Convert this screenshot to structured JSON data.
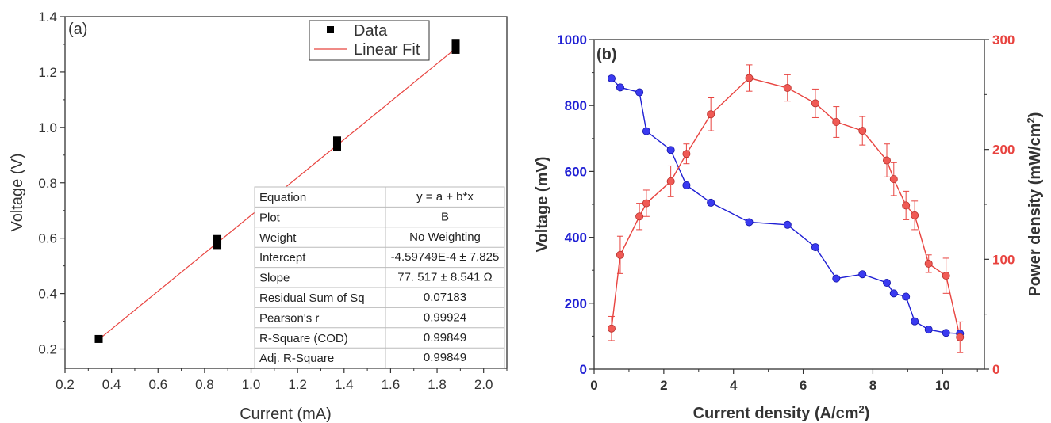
{
  "chart_data": [
    {
      "type": "scatter",
      "panel_label": "(a)",
      "xlabel": "Current (mA)",
      "ylabel": "Voltage (V)",
      "xlim": [
        0.2,
        2.1
      ],
      "ylim": [
        0.13,
        1.4
      ],
      "xticks": [
        "0.2",
        "0.4",
        "0.6",
        "0.8",
        "1.0",
        "1.2",
        "1.4",
        "1.6",
        "1.8",
        "2.0"
      ],
      "yticks": [
        "0.2",
        "0.4",
        "0.6",
        "0.8",
        "1.0",
        "1.2",
        "1.4"
      ],
      "legend": {
        "placement": "top-right",
        "entries": [
          "Data",
          "Linear Fit"
        ]
      },
      "series": [
        {
          "name": "Data",
          "color": "#000000",
          "x": [
            0.345,
            0.855,
            0.855,
            0.855,
            1.37,
            1.37,
            1.37,
            1.37,
            1.88,
            1.88,
            1.88
          ],
          "y": [
            0.236,
            0.575,
            0.59,
            0.597,
            0.928,
            0.938,
            0.948,
            0.953,
            1.28,
            1.292,
            1.305
          ]
        },
        {
          "name": "Linear Fit",
          "color": "#e8433f",
          "x": [
            0.345,
            1.88
          ],
          "y": [
            0.234,
            1.285
          ]
        }
      ],
      "fit_table": [
        [
          "Equation",
          "y = a + b*x"
        ],
        [
          "Plot",
          "B"
        ],
        [
          "Weight",
          "No Weighting"
        ],
        [
          "Intercept",
          "-4.59749E-4 ± 7.825"
        ],
        [
          "Slope",
          "77. 517 ± 8.541 Ω"
        ],
        [
          "Residual Sum of Sq",
          "0.07183"
        ],
        [
          "Pearson's r",
          "0.99924"
        ],
        [
          "R-Square (COD)",
          "0.99849"
        ],
        [
          "Adj. R-Square",
          "0.99849"
        ]
      ]
    },
    {
      "type": "line",
      "panel_label": "(b)",
      "xlabel": "Current density (A/cm²)",
      "ylabel_left": "Voltage (mV)",
      "ylabel_right": "Power density (mW/cm²)",
      "xlim": [
        0,
        11.2
      ],
      "ylim_left": [
        0,
        1000
      ],
      "ylim_right": [
        0,
        300
      ],
      "xticks": [
        "0",
        "2",
        "4",
        "6",
        "8",
        "10"
      ],
      "yticks_left": [
        "0",
        "200",
        "400",
        "600",
        "800",
        "1000"
      ],
      "yticks_right": [
        "0",
        "100",
        "200",
        "300"
      ],
      "grid": false,
      "colors": {
        "left": "#1f1fd4",
        "right": "#e8433f"
      },
      "series": [
        {
          "axis": "left",
          "x": [
            0.5,
            0.75,
            1.3,
            1.5,
            2.2,
            2.65,
            3.35,
            4.45,
            5.55,
            6.35,
            6.95,
            7.7,
            8.4,
            8.6,
            8.95,
            9.2,
            9.6,
            10.1,
            10.5
          ],
          "y": [
            882,
            855,
            840,
            722,
            665,
            558,
            505,
            446,
            438,
            370,
            275,
            288,
            262,
            230,
            220,
            145,
            120,
            110,
            108
          ]
        },
        {
          "axis": "right",
          "x": [
            0.5,
            0.75,
            1.3,
            1.5,
            2.2,
            2.65,
            3.35,
            4.45,
            5.55,
            6.35,
            6.95,
            7.7,
            8.4,
            8.6,
            8.95,
            9.2,
            9.6,
            10.1,
            10.5
          ],
          "y": [
            37,
            104,
            139,
            151,
            171,
            196,
            232,
            265,
            256,
            242,
            225,
            217,
            190,
            173,
            149,
            140,
            96,
            85,
            29
          ],
          "err": [
            11,
            17,
            12,
            12,
            14,
            9,
            15,
            12,
            12,
            13,
            14,
            13,
            15,
            15,
            13,
            13,
            8,
            16,
            14
          ]
        }
      ]
    }
  ]
}
